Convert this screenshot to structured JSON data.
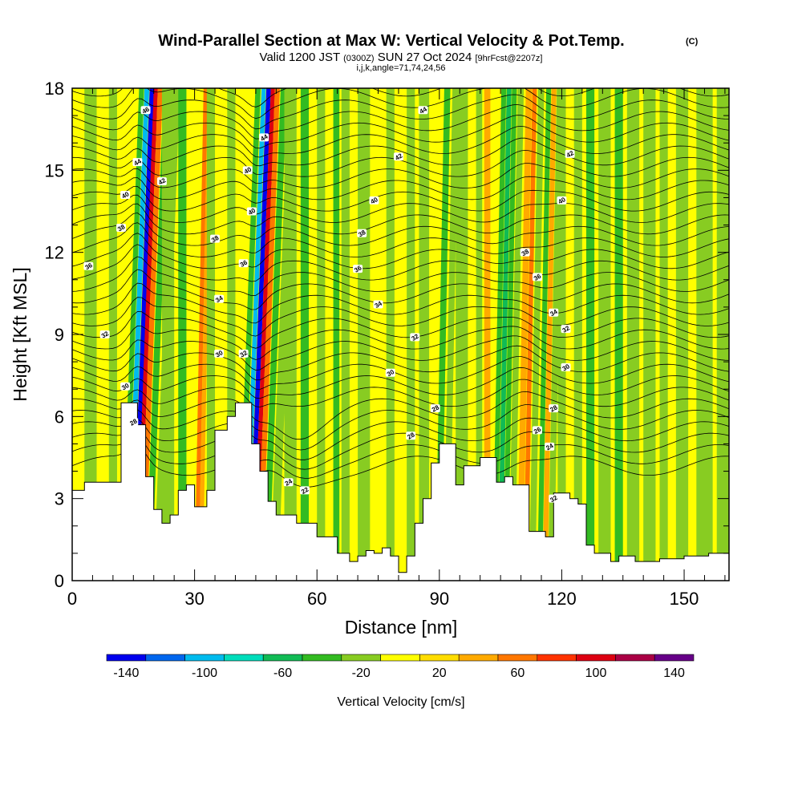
{
  "title": {
    "main": "Wind-Parallel Section at Max W: Vertical Velocity & Pot.Temp.",
    "copyright": "(C)",
    "valid_prefix": "Valid 1200 JST",
    "valid_utc": "(0300Z)",
    "valid_date": "SUN 27 Oct 2024",
    "forecast": "[9hrFcst@2207z]",
    "grid_info": "i,j,k,angle=71,74,24,56"
  },
  "chart_data": {
    "type": "heatmap",
    "xlabel": "Distance [nm]",
    "ylabel": "Height [Kft MSL]",
    "xlim": [
      0,
      161
    ],
    "ylim": [
      0,
      18
    ],
    "x_ticks": [
      0,
      30,
      60,
      90,
      120,
      150
    ],
    "y_ticks": [
      0,
      3,
      6,
      9,
      12,
      15,
      18
    ],
    "grid": false,
    "colorbar": {
      "label": "Vertical Velocity [cm/s]",
      "levels": [
        -150,
        -130,
        -110,
        -90,
        -70,
        -50,
        -30,
        -10,
        10,
        30,
        50,
        70,
        90,
        110,
        130,
        150
      ],
      "colors": [
        "#0000ee",
        "#0066ee",
        "#00bbee",
        "#00ddbb",
        "#11bb55",
        "#33bb22",
        "#88cc22",
        "#ffff00",
        "#ffdd00",
        "#ffaa00",
        "#ff7700",
        "#ff3300",
        "#dd0011",
        "#aa0044",
        "#660088"
      ],
      "tick_values": [
        -140,
        -100,
        -60,
        -20,
        20,
        60,
        100,
        140
      ],
      "tick_labels": [
        "-140",
        "-100",
        "-60",
        "-20",
        "20",
        "60",
        "100",
        "140"
      ]
    },
    "terrain": {
      "x": [
        0,
        3,
        3,
        8,
        8,
        12,
        12,
        16,
        16,
        18,
        18,
        20,
        20,
        22,
        22,
        24,
        24,
        26,
        26,
        28,
        28,
        30,
        30,
        33,
        33,
        35,
        35,
        38,
        38,
        40,
        40,
        44,
        44,
        46,
        46,
        48,
        48,
        50,
        50,
        55,
        55,
        60,
        60,
        65,
        65,
        68,
        68,
        70,
        70,
        72,
        72,
        74,
        74,
        76,
        76,
        78,
        78,
        80,
        80,
        82,
        82,
        84,
        84,
        86,
        86,
        88,
        88,
        90,
        90,
        94,
        94,
        96,
        96,
        100,
        100,
        104,
        104,
        106,
        106,
        108,
        108,
        112,
        112,
        116,
        116,
        118,
        118,
        122,
        122,
        124,
        124,
        126,
        126,
        128,
        128,
        132,
        132,
        134,
        134,
        138,
        138,
        144,
        144,
        150,
        150,
        156,
        156,
        161
      ],
      "height": [
        3.3,
        3.3,
        3.6,
        3.6,
        3.6,
        3.6,
        6.5,
        6.5,
        5.7,
        5.7,
        3.8,
        3.8,
        2.6,
        2.6,
        2.1,
        2.1,
        2.4,
        2.4,
        3.3,
        3.3,
        3.5,
        3.5,
        2.7,
        2.7,
        3.3,
        3.3,
        5.5,
        5.5,
        6.0,
        6.0,
        6.5,
        6.5,
        5.0,
        5.0,
        4.0,
        4.0,
        2.9,
        2.9,
        2.4,
        2.4,
        2.1,
        2.1,
        1.6,
        1.6,
        1.0,
        1.0,
        0.7,
        0.7,
        0.9,
        0.9,
        1.1,
        1.1,
        1.0,
        1.0,
        1.2,
        1.2,
        0.9,
        0.9,
        0.3,
        0.3,
        0.9,
        0.9,
        2.1,
        2.1,
        3.0,
        3.0,
        4.3,
        4.3,
        5.0,
        5.0,
        3.5,
        3.5,
        4.2,
        4.2,
        4.5,
        4.5,
        3.6,
        3.6,
        3.8,
        3.8,
        3.5,
        3.5,
        1.8,
        1.8,
        1.6,
        1.6,
        3.2,
        3.2,
        3.0,
        3.0,
        2.8,
        2.8,
        1.3,
        1.3,
        1.0,
        1.0,
        0.7,
        0.7,
        0.9,
        0.9,
        0.7,
        0.7,
        0.8,
        0.8,
        0.9,
        0.9,
        1.0,
        1.0
      ]
    },
    "contour_labels": [
      {
        "x": 18,
        "y": 17.2,
        "text": "46"
      },
      {
        "x": 16,
        "y": 15.3,
        "text": "44"
      },
      {
        "x": 13,
        "y": 14.1,
        "text": "40"
      },
      {
        "x": 12,
        "y": 12.9,
        "text": "38"
      },
      {
        "x": 22,
        "y": 14.6,
        "text": "42"
      },
      {
        "x": 4,
        "y": 11.5,
        "text": "36"
      },
      {
        "x": 8,
        "y": 9.0,
        "text": "32"
      },
      {
        "x": 13,
        "y": 7.1,
        "text": "30"
      },
      {
        "x": 15,
        "y": 5.8,
        "text": "28"
      },
      {
        "x": 35,
        "y": 12.5,
        "text": "38"
      },
      {
        "x": 36,
        "y": 10.3,
        "text": "34"
      },
      {
        "x": 36,
        "y": 8.3,
        "text": "30"
      },
      {
        "x": 42,
        "y": 11.6,
        "text": "36"
      },
      {
        "x": 42,
        "y": 8.3,
        "text": "32"
      },
      {
        "x": 43,
        "y": 15.0,
        "text": "40"
      },
      {
        "x": 44,
        "y": 13.5,
        "text": "40"
      },
      {
        "x": 47,
        "y": 16.2,
        "text": "44"
      },
      {
        "x": 53,
        "y": 3.6,
        "text": "24"
      },
      {
        "x": 57,
        "y": 3.3,
        "text": "22"
      },
      {
        "x": 86,
        "y": 17.2,
        "text": "44"
      },
      {
        "x": 80,
        "y": 15.5,
        "text": "42"
      },
      {
        "x": 74,
        "y": 13.9,
        "text": "40"
      },
      {
        "x": 71,
        "y": 12.7,
        "text": "38"
      },
      {
        "x": 70,
        "y": 11.4,
        "text": "36"
      },
      {
        "x": 75,
        "y": 10.1,
        "text": "34"
      },
      {
        "x": 84,
        "y": 8.9,
        "text": "32"
      },
      {
        "x": 78,
        "y": 7.6,
        "text": "30"
      },
      {
        "x": 89,
        "y": 6.3,
        "text": "28"
      },
      {
        "x": 83,
        "y": 5.3,
        "text": "28"
      },
      {
        "x": 122,
        "y": 15.6,
        "text": "42"
      },
      {
        "x": 120,
        "y": 13.9,
        "text": "40"
      },
      {
        "x": 111,
        "y": 12.0,
        "text": "38"
      },
      {
        "x": 114,
        "y": 11.1,
        "text": "36"
      },
      {
        "x": 118,
        "y": 9.8,
        "text": "34"
      },
      {
        "x": 121,
        "y": 9.2,
        "text": "32"
      },
      {
        "x": 121,
        "y": 7.8,
        "text": "30"
      },
      {
        "x": 118,
        "y": 6.3,
        "text": "28"
      },
      {
        "x": 114,
        "y": 5.5,
        "text": "26"
      },
      {
        "x": 117,
        "y": 4.9,
        "text": "24"
      },
      {
        "x": 118,
        "y": 3.0,
        "text": "32"
      }
    ]
  }
}
